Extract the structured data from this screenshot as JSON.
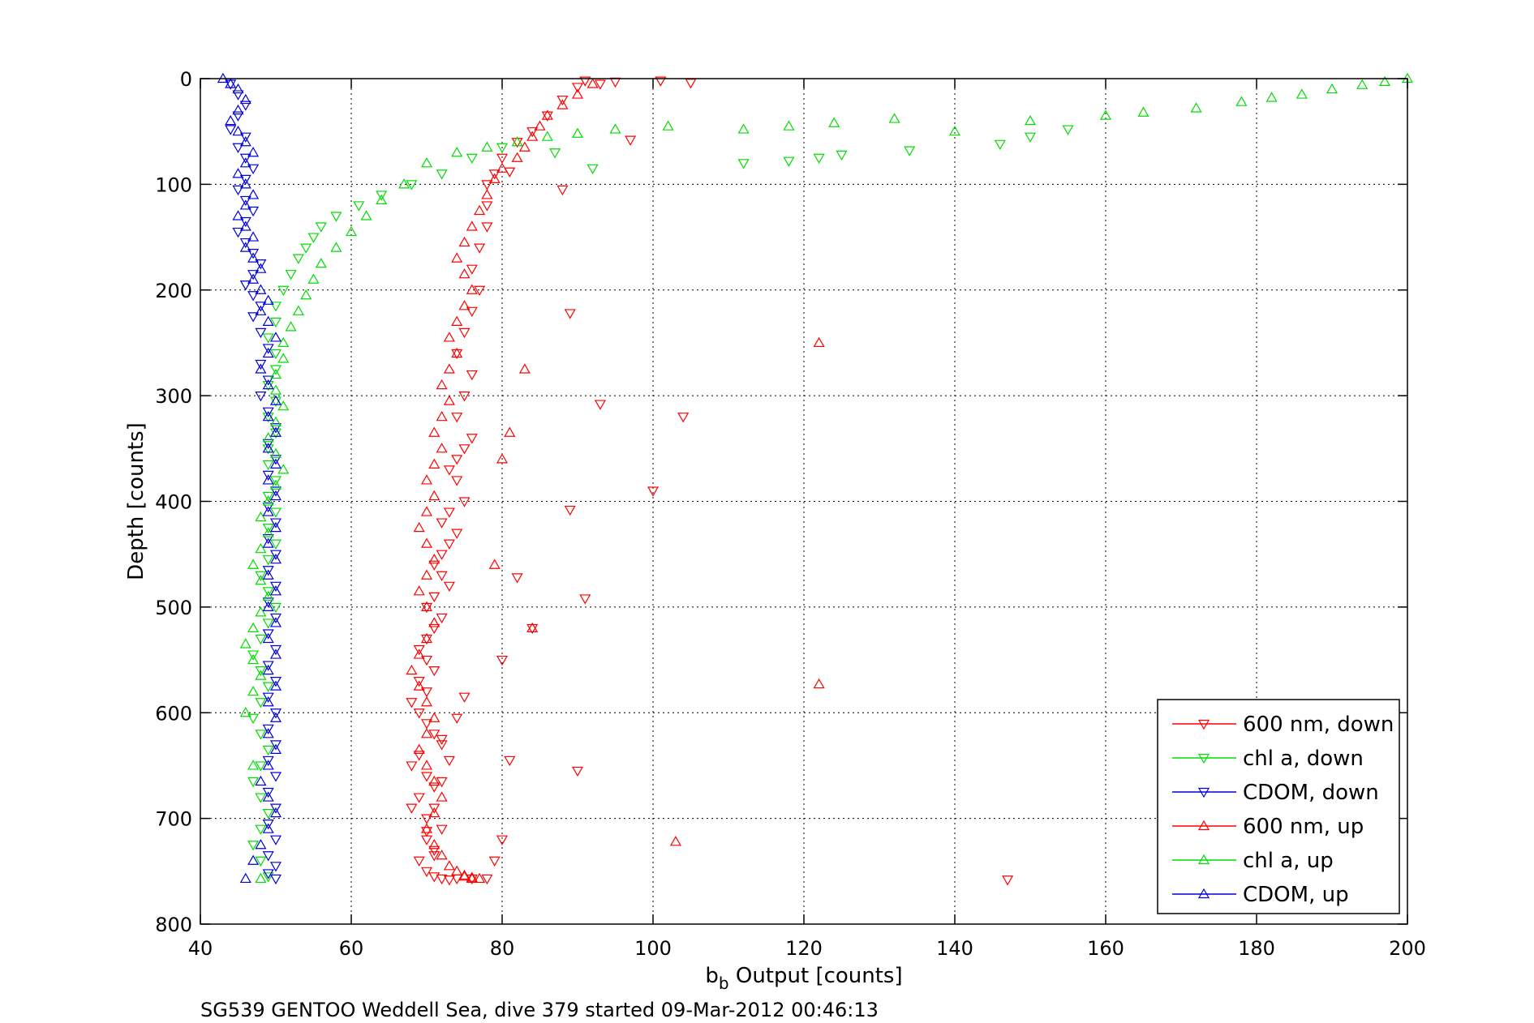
{
  "chart_data": {
    "type": "scatter",
    "title": "",
    "xlabel_main": "b",
    "xlabel_sub": "b",
    "xlabel_rest": " Output [counts]",
    "ylabel": "Depth [counts]",
    "caption": "SG539 GENTOO Weddell Sea, dive 379 started 09-Mar-2012 00:46:13",
    "xlim": [
      40,
      200
    ],
    "ylim": [
      0,
      800
    ],
    "y_reversed": true,
    "xticks": [
      40,
      60,
      80,
      100,
      120,
      140,
      160,
      180,
      200
    ],
    "yticks": [
      0,
      100,
      200,
      300,
      400,
      500,
      600,
      700,
      800
    ],
    "grid": true,
    "legend_position": "bottom-right",
    "series": [
      {
        "name": "600 nm, down",
        "color": "#ff0000",
        "marker": "triangle-down",
        "x": [
          91,
          93,
          95,
          90,
          88,
          86,
          84,
          82,
          80,
          79,
          78,
          78,
          78,
          77,
          76,
          77,
          76,
          75,
          74,
          76,
          75,
          74,
          76,
          75,
          74,
          73,
          74,
          75,
          73,
          72,
          74,
          73,
          72,
          71,
          72,
          73,
          71,
          70,
          72,
          71,
          70,
          69,
          70,
          71,
          69,
          70,
          68,
          69,
          70,
          71,
          72,
          69,
          68,
          70,
          71,
          69,
          68,
          70,
          72,
          70,
          71,
          69,
          70,
          71,
          72,
          73,
          71,
          70,
          71,
          72,
          73,
          72,
          74,
          75,
          101,
          105,
          97,
          88,
          81,
          89,
          93,
          104,
          100,
          89,
          91,
          84,
          90,
          82,
          80,
          147,
          81,
          80,
          79,
          78,
          76,
          74
        ],
        "y": [
          2,
          5,
          3,
          8,
          20,
          35,
          50,
          60,
          75,
          90,
          100,
          120,
          140,
          160,
          180,
          200,
          220,
          240,
          260,
          280,
          300,
          320,
          340,
          350,
          360,
          370,
          380,
          400,
          410,
          420,
          430,
          440,
          450,
          460,
          470,
          480,
          490,
          500,
          510,
          520,
          530,
          540,
          550,
          560,
          570,
          580,
          590,
          600,
          610,
          620,
          630,
          640,
          650,
          660,
          670,
          680,
          690,
          700,
          710,
          720,
          730,
          740,
          750,
          755,
          757,
          758,
          735,
          712,
          690,
          665,
          645,
          625,
          605,
          585,
          2,
          4,
          58,
          105,
          88,
          222,
          308,
          320,
          390,
          408,
          492,
          520,
          655,
          472,
          550,
          758,
          645,
          720,
          740,
          757,
          757,
          757
        ]
      },
      {
        "name": "chl a, down",
        "color": "#00dd00",
        "marker": "triangle-down",
        "x": [
          112,
          118,
          122,
          125,
          134,
          146,
          150,
          155,
          92,
          87,
          80,
          76,
          72,
          68,
          64,
          61,
          58,
          56,
          55,
          54,
          53,
          52,
          51,
          50,
          50,
          49,
          50,
          50,
          49,
          50,
          49,
          50,
          49,
          49,
          50,
          49,
          50,
          49,
          50,
          49,
          48,
          49,
          50,
          49,
          48,
          47,
          48,
          49,
          48,
          47,
          48,
          49,
          48,
          47,
          48,
          49,
          48,
          47,
          48,
          49
        ],
        "y": [
          80,
          78,
          75,
          72,
          68,
          62,
          55,
          48,
          85,
          70,
          65,
          75,
          90,
          100,
          110,
          120,
          130,
          140,
          150,
          160,
          170,
          185,
          200,
          215,
          230,
          245,
          260,
          275,
          290,
          305,
          320,
          335,
          350,
          365,
          380,
          395,
          410,
          425,
          440,
          455,
          470,
          485,
          500,
          515,
          530,
          545,
          560,
          575,
          590,
          605,
          620,
          635,
          650,
          665,
          680,
          695,
          710,
          725,
          740,
          755
        ]
      },
      {
        "name": "CDOM, down",
        "color": "#0000dd",
        "marker": "triangle-down",
        "x": [
          44,
          45,
          46,
          45,
          44,
          46,
          45,
          46,
          47,
          46,
          45,
          46,
          47,
          46,
          45,
          46,
          47,
          48,
          47,
          46,
          47,
          48,
          47,
          48,
          49,
          48,
          49,
          48,
          49,
          50,
          49,
          50,
          49,
          50,
          49,
          50,
          49,
          50,
          49,
          50,
          49,
          50,
          49,
          50,
          49,
          50,
          49,
          50,
          49,
          50,
          49,
          50,
          49,
          50,
          49,
          50,
          49,
          50,
          49,
          50
        ],
        "y": [
          5,
          15,
          25,
          35,
          48,
          55,
          65,
          75,
          85,
          95,
          105,
          115,
          125,
          135,
          145,
          155,
          165,
          175,
          185,
          195,
          205,
          215,
          225,
          240,
          255,
          270,
          285,
          300,
          315,
          330,
          345,
          360,
          375,
          390,
          405,
          420,
          435,
          450,
          465,
          480,
          495,
          510,
          525,
          540,
          555,
          570,
          585,
          600,
          615,
          630,
          645,
          660,
          675,
          690,
          705,
          720,
          735,
          745,
          752,
          757
        ]
      },
      {
        "name": "600 nm, up",
        "color": "#ff0000",
        "marker": "triangle-up",
        "x": [
          92,
          90,
          88,
          86,
          85,
          84,
          83,
          82,
          80,
          79,
          78,
          77,
          76,
          75,
          74,
          75,
          76,
          75,
          74,
          73,
          74,
          73,
          72,
          73,
          72,
          71,
          72,
          71,
          70,
          71,
          70,
          69,
          70,
          71,
          70,
          69,
          70,
          71,
          70,
          69,
          68,
          69,
          70,
          71,
          70,
          69,
          70,
          71,
          72,
          71,
          70,
          71,
          72,
          73,
          74,
          75,
          76,
          77,
          76,
          75,
          122,
          122,
          103,
          84,
          83,
          79,
          80,
          81
        ],
        "y": [
          5,
          15,
          25,
          35,
          45,
          55,
          65,
          75,
          85,
          95,
          110,
          125,
          140,
          155,
          170,
          185,
          200,
          215,
          230,
          245,
          260,
          275,
          290,
          305,
          320,
          335,
          350,
          365,
          380,
          395,
          410,
          425,
          440,
          455,
          470,
          485,
          500,
          515,
          530,
          545,
          560,
          575,
          590,
          605,
          620,
          635,
          650,
          665,
          680,
          695,
          710,
          725,
          735,
          745,
          750,
          755,
          757,
          757,
          756,
          754,
          250,
          573,
          722,
          520,
          275,
          460,
          360,
          335
        ]
      },
      {
        "name": "chl a, up",
        "color": "#00dd00",
        "marker": "triangle-up",
        "x": [
          200,
          197,
          194,
          190,
          186,
          182,
          178,
          172,
          165,
          160,
          150,
          140,
          132,
          124,
          118,
          112,
          102,
          95,
          90,
          86,
          82,
          78,
          74,
          70,
          67,
          64,
          62,
          60,
          58,
          56,
          55,
          54,
          53,
          52,
          51,
          51,
          50,
          50,
          51,
          50,
          49,
          50,
          51,
          50,
          49,
          48,
          49,
          48,
          47,
          48,
          49,
          48,
          47,
          46,
          47,
          48,
          47,
          46,
          47,
          48
        ],
        "y": [
          0,
          3,
          6,
          10,
          15,
          18,
          22,
          28,
          32,
          35,
          40,
          50,
          38,
          42,
          45,
          48,
          45,
          48,
          52,
          55,
          60,
          65,
          70,
          80,
          100,
          115,
          130,
          145,
          160,
          175,
          190,
          205,
          220,
          235,
          250,
          265,
          280,
          295,
          310,
          325,
          340,
          355,
          370,
          385,
          400,
          415,
          430,
          445,
          460,
          475,
          490,
          505,
          520,
          535,
          550,
          565,
          580,
          600,
          650,
          757
        ]
      },
      {
        "name": "CDOM, up",
        "color": "#0000dd",
        "marker": "triangle-up",
        "x": [
          43,
          44,
          45,
          46,
          45,
          44,
          45,
          46,
          47,
          46,
          45,
          46,
          47,
          46,
          45,
          46,
          47,
          46,
          47,
          48,
          47,
          48,
          49,
          48,
          49,
          50,
          49,
          48,
          49,
          50,
          49,
          50,
          49,
          50,
          49,
          50,
          49,
          50,
          49,
          50,
          49,
          50,
          49,
          50,
          49,
          50,
          49,
          50,
          49,
          50,
          49,
          50,
          49,
          48,
          49,
          50,
          49,
          48,
          47,
          46
        ],
        "y": [
          0,
          5,
          10,
          20,
          30,
          40,
          50,
          60,
          70,
          80,
          90,
          100,
          110,
          120,
          130,
          140,
          150,
          160,
          170,
          180,
          190,
          200,
          210,
          220,
          230,
          245,
          260,
          275,
          290,
          305,
          320,
          335,
          350,
          365,
          380,
          395,
          410,
          425,
          440,
          455,
          470,
          485,
          500,
          515,
          530,
          545,
          560,
          575,
          590,
          605,
          620,
          635,
          650,
          665,
          680,
          695,
          710,
          725,
          740,
          757
        ]
      }
    ]
  }
}
